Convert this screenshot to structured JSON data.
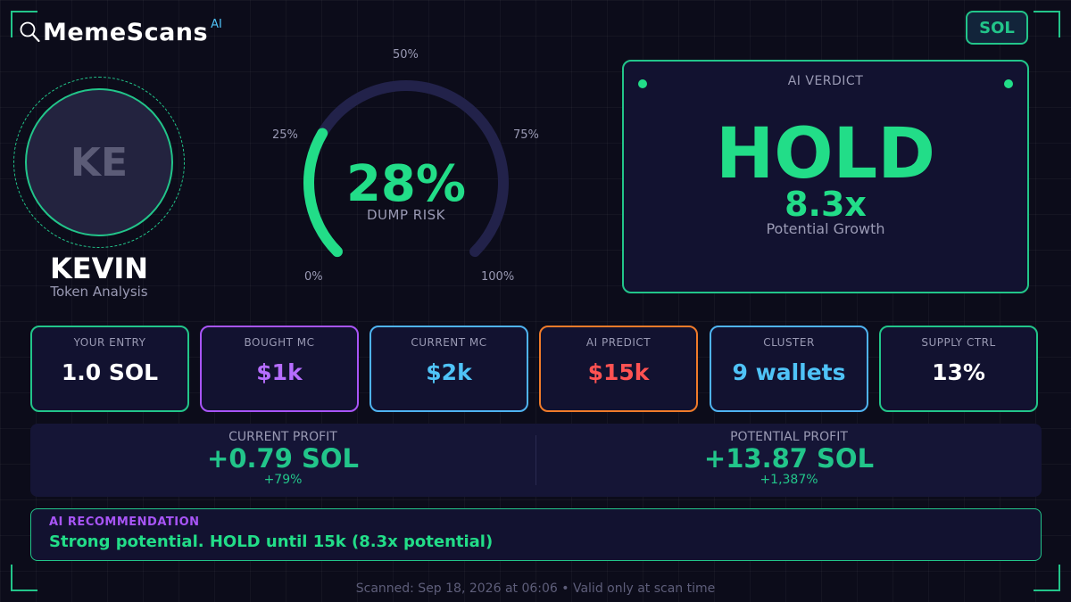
{
  "brand": {
    "name": "MemeScans",
    "suffix": "AI",
    "icon": "magnifier-icon"
  },
  "chain": {
    "label": "SOL"
  },
  "token": {
    "initials": "KE",
    "name": "KEVIN",
    "subtitle": "Token Analysis"
  },
  "gauge": {
    "value": 28,
    "value_text": "28%",
    "caption": "DUMP RISK",
    "ticks": {
      "min": "0%",
      "q1": "25%",
      "mid": "50%",
      "q3": "75%",
      "max": "100%"
    },
    "colors": {
      "track": "#22224a",
      "fill": "#22dd88"
    }
  },
  "verdict": {
    "title": "AI VERDICT",
    "decision": "HOLD",
    "multiplier": "8.3x",
    "subtitle": "Potential Growth"
  },
  "stats": [
    {
      "label": "YOUR ENTRY",
      "value": "1.0 SOL",
      "border": "#22c58a",
      "color": "#ffffff"
    },
    {
      "label": "BOUGHT MC",
      "value": "$1k",
      "border": "#a855f7",
      "color": "#b66dff"
    },
    {
      "label": "CURRENT MC",
      "value": "$2k",
      "border": "#4fb3f0",
      "color": "#4fc3f7"
    },
    {
      "label": "AI PREDICT",
      "value": "$15k",
      "border": "#f07b2a",
      "color": "#ff5252"
    },
    {
      "label": "CLUSTER",
      "value": "9 wallets",
      "border": "#4fb3f0",
      "color": "#4fc3f7"
    },
    {
      "label": "SUPPLY CTRL",
      "value": "13%",
      "border": "#22c58a",
      "color": "#ffffff"
    }
  ],
  "profit": {
    "current": {
      "label": "CURRENT PROFIT",
      "value": "+0.79 SOL",
      "percent": "+79%"
    },
    "potential": {
      "label": "POTENTIAL PROFIT",
      "value": "+13.87 SOL",
      "percent": "+1,387%"
    }
  },
  "recommendation": {
    "label": "AI RECOMMENDATION",
    "text": "Strong potential. HOLD until 15k (8.3x potential)"
  },
  "footer": {
    "text": "Scanned: Sep 18, 2026 at 06:06  •  Valid only at scan time"
  }
}
